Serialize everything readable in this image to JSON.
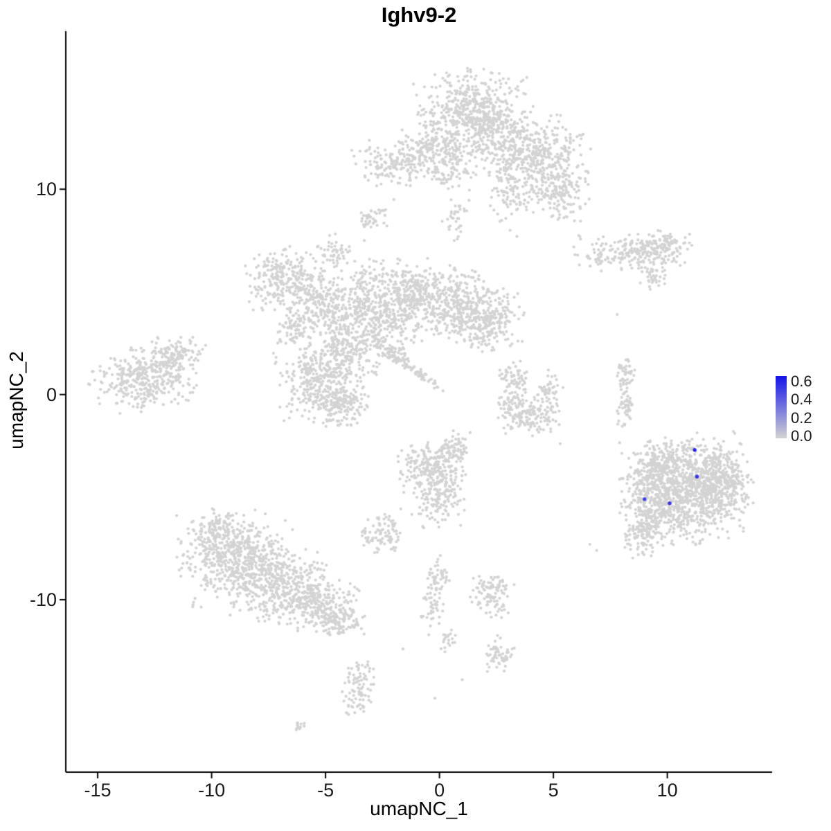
{
  "chart_data": {
    "type": "scatter",
    "title": "Ighv9-2",
    "xlabel": "umapNC_1",
    "ylabel": "umapNC_2",
    "xlim": [
      -16.4,
      14.6
    ],
    "ylim": [
      -18.4,
      17.7
    ],
    "x_ticks": [
      "-15",
      "-10",
      "-5",
      "0",
      "5",
      "10"
    ],
    "x_tick_values": [
      -15,
      -10,
      -5,
      0,
      5,
      10
    ],
    "y_ticks": [
      "10",
      "0",
      "-10"
    ],
    "y_tick_values": [
      10,
      0,
      -10
    ],
    "grid": false,
    "legend_position": "right",
    "color_low": "#D3D3D3",
    "color_high": "#1414E8",
    "legend": {
      "labels": [
        "0.6",
        "0.4",
        "0.2",
        "0.0"
      ],
      "values": [
        0.6,
        0.4,
        0.2,
        0.0
      ],
      "vmin": -0.02,
      "vmax": 0.66
    },
    "clusters": [
      {
        "x": 1.5,
        "y": 13.7,
        "sx": 1.15,
        "sy": 0.95,
        "n": 520
      },
      {
        "x": 2.9,
        "y": 12.3,
        "sx": 1.4,
        "sy": 0.8,
        "n": 320
      },
      {
        "x": 4.7,
        "y": 11.4,
        "sx": 0.9,
        "sy": 0.7,
        "n": 240
      },
      {
        "x": 5.3,
        "y": 9.7,
        "sx": 0.6,
        "sy": 0.6,
        "n": 130
      },
      {
        "x": 3.3,
        "y": 10.0,
        "sx": 0.5,
        "sy": 0.7,
        "n": 110
      },
      {
        "x": -1.9,
        "y": 11.3,
        "sx": 0.9,
        "sy": 0.5,
        "n": 160
      },
      {
        "x": -0.4,
        "y": 12.0,
        "sx": 0.8,
        "sy": 0.5,
        "n": 130
      },
      {
        "x": 0.4,
        "y": 10.9,
        "sx": 0.5,
        "sy": 0.5,
        "n": 70
      },
      {
        "x": -2.9,
        "y": 8.6,
        "sx": 0.3,
        "sy": 0.3,
        "n": 40
      },
      {
        "x": 0.7,
        "y": 8.4,
        "sx": 0.3,
        "sy": 0.6,
        "n": 35
      },
      {
        "x": 8.5,
        "y": 6.9,
        "sx": 1.1,
        "sy": 0.4,
        "n": 210
      },
      {
        "x": 9.9,
        "y": 7.3,
        "sx": 0.5,
        "sy": 0.3,
        "n": 80
      },
      {
        "x": 9.3,
        "y": 5.9,
        "sx": 0.3,
        "sy": 0.35,
        "n": 40
      },
      {
        "x": -6.8,
        "y": 5.6,
        "sx": 0.85,
        "sy": 0.7,
        "n": 270
      },
      {
        "x": -5.1,
        "y": 4.3,
        "sx": 0.8,
        "sy": 0.75,
        "n": 220
      },
      {
        "x": -3.1,
        "y": 4.6,
        "sx": 0.8,
        "sy": 0.85,
        "n": 230
      },
      {
        "x": -1.2,
        "y": 4.9,
        "sx": 0.85,
        "sy": 0.8,
        "n": 290
      },
      {
        "x": 0.8,
        "y": 4.3,
        "sx": 0.9,
        "sy": 0.85,
        "n": 330
      },
      {
        "x": 2.1,
        "y": 3.6,
        "sx": 0.7,
        "sy": 0.7,
        "n": 210
      },
      {
        "x": -2.4,
        "y": 3.0,
        "sx": 0.7,
        "sy": 0.7,
        "n": 180
      },
      {
        "x": -4.0,
        "y": 2.2,
        "sx": 0.7,
        "sy": 0.8,
        "n": 200
      },
      {
        "x": -5.3,
        "y": 0.6,
        "sx": 0.85,
        "sy": 0.95,
        "n": 340
      },
      {
        "x": -4.3,
        "y": -0.5,
        "sx": 0.6,
        "sy": 0.5,
        "n": 140
      },
      {
        "x": -1.5,
        "y": 1.5,
        "sx": 1.0,
        "sy": 0.14,
        "n": 110,
        "rot": -40
      },
      {
        "x": -6.4,
        "y": 3.1,
        "sx": 0.4,
        "sy": 0.5,
        "n": 80
      },
      {
        "x": -4.5,
        "y": 6.9,
        "sx": 0.3,
        "sy": 0.4,
        "n": 45
      },
      {
        "x": -12.9,
        "y": 0.9,
        "sx": 1.05,
        "sy": 0.7,
        "n": 400,
        "rot": 15
      },
      {
        "x": -11.4,
        "y": 2.0,
        "sx": 0.5,
        "sy": 0.35,
        "n": 80
      },
      {
        "x": 3.2,
        "y": 0.8,
        "sx": 0.3,
        "sy": 0.4,
        "n": 55
      },
      {
        "x": 3.3,
        "y": -0.5,
        "sx": 0.4,
        "sy": 0.6,
        "n": 90
      },
      {
        "x": 4.2,
        "y": -1.1,
        "sx": 0.5,
        "sy": 0.4,
        "n": 90
      },
      {
        "x": 4.8,
        "y": 0.1,
        "sx": 0.28,
        "sy": 0.5,
        "n": 60
      },
      {
        "x": 8.15,
        "y": 1.0,
        "sx": 0.18,
        "sy": 0.45,
        "n": 45
      },
      {
        "x": 8.2,
        "y": -0.6,
        "sx": 0.18,
        "sy": 0.5,
        "n": 45
      },
      {
        "x": 10.9,
        "y": -4.6,
        "sx": 1.25,
        "sy": 1.15,
        "n": 950
      },
      {
        "x": 12.3,
        "y": -4.3,
        "sx": 0.6,
        "sy": 0.8,
        "n": 240
      },
      {
        "x": 9.3,
        "y": -5.2,
        "sx": 0.55,
        "sy": 0.95,
        "n": 260
      },
      {
        "x": 8.9,
        "y": -6.9,
        "sx": 0.4,
        "sy": 0.5,
        "n": 90
      },
      {
        "x": 9.7,
        "y": -3.3,
        "sx": 0.5,
        "sy": 0.5,
        "n": 130
      },
      {
        "x": -0.5,
        "y": -3.6,
        "sx": 0.7,
        "sy": 0.6,
        "n": 200
      },
      {
        "x": -0.1,
        "y": -5.0,
        "sx": 0.5,
        "sy": 0.65,
        "n": 150
      },
      {
        "x": 0.6,
        "y": -2.7,
        "sx": 0.4,
        "sy": 0.4,
        "n": 80
      },
      {
        "x": -8.9,
        "y": -8.0,
        "sx": 1.1,
        "sy": 1.0,
        "n": 560
      },
      {
        "x": -7.0,
        "y": -9.3,
        "sx": 1.0,
        "sy": 0.8,
        "n": 340
      },
      {
        "x": -5.3,
        "y": -10.2,
        "sx": 0.8,
        "sy": 0.6,
        "n": 220
      },
      {
        "x": -4.3,
        "y": -11.0,
        "sx": 0.5,
        "sy": 0.4,
        "n": 100
      },
      {
        "x": -9.9,
        "y": -6.6,
        "sx": 0.5,
        "sy": 0.5,
        "n": 110
      },
      {
        "x": -2.5,
        "y": -6.7,
        "sx": 0.4,
        "sy": 0.5,
        "n": 90
      },
      {
        "x": 0.0,
        "y": -8.8,
        "sx": 0.3,
        "sy": 0.5,
        "n": 45
      },
      {
        "x": -0.3,
        "y": -10.3,
        "sx": 0.25,
        "sy": 0.6,
        "n": 40
      },
      {
        "x": 2.3,
        "y": -9.7,
        "sx": 0.45,
        "sy": 0.5,
        "n": 95
      },
      {
        "x": 2.6,
        "y": -12.7,
        "sx": 0.3,
        "sy": 0.4,
        "n": 55
      },
      {
        "x": 0.4,
        "y": -11.9,
        "sx": 0.2,
        "sy": 0.3,
        "n": 20
      },
      {
        "x": -3.6,
        "y": -14.3,
        "sx": 0.35,
        "sy": 0.7,
        "n": 90
      },
      {
        "x": -6.1,
        "y": -16.2,
        "sx": 0.2,
        "sy": 0.15,
        "n": 12
      }
    ],
    "singles": [
      [
        3.1,
        8.0
      ],
      [
        3.4,
        7.7
      ],
      [
        6.6,
        -7.3
      ],
      [
        6.9,
        -7.6
      ],
      [
        1.0,
        -13.9
      ],
      [
        2.1,
        -13.5
      ],
      [
        -1.6,
        -12.4
      ],
      [
        5.3,
        -2.4
      ],
      [
        -3.3,
        7.5
      ],
      [
        -2.0,
        9.5
      ],
      [
        12.9,
        -1.8
      ],
      [
        -0.2,
        -14.8
      ],
      [
        7.8,
        3.9
      ],
      [
        -2.2,
        2.1
      ]
    ],
    "highlighted_points": [
      {
        "x": 11.2,
        "y": -2.7,
        "value": 0.6
      },
      {
        "x": 11.3,
        "y": -4.0,
        "value": 0.55
      },
      {
        "x": 9.0,
        "y": -5.1,
        "value": 0.5
      },
      {
        "x": 10.1,
        "y": -5.3,
        "value": 0.55
      }
    ]
  }
}
